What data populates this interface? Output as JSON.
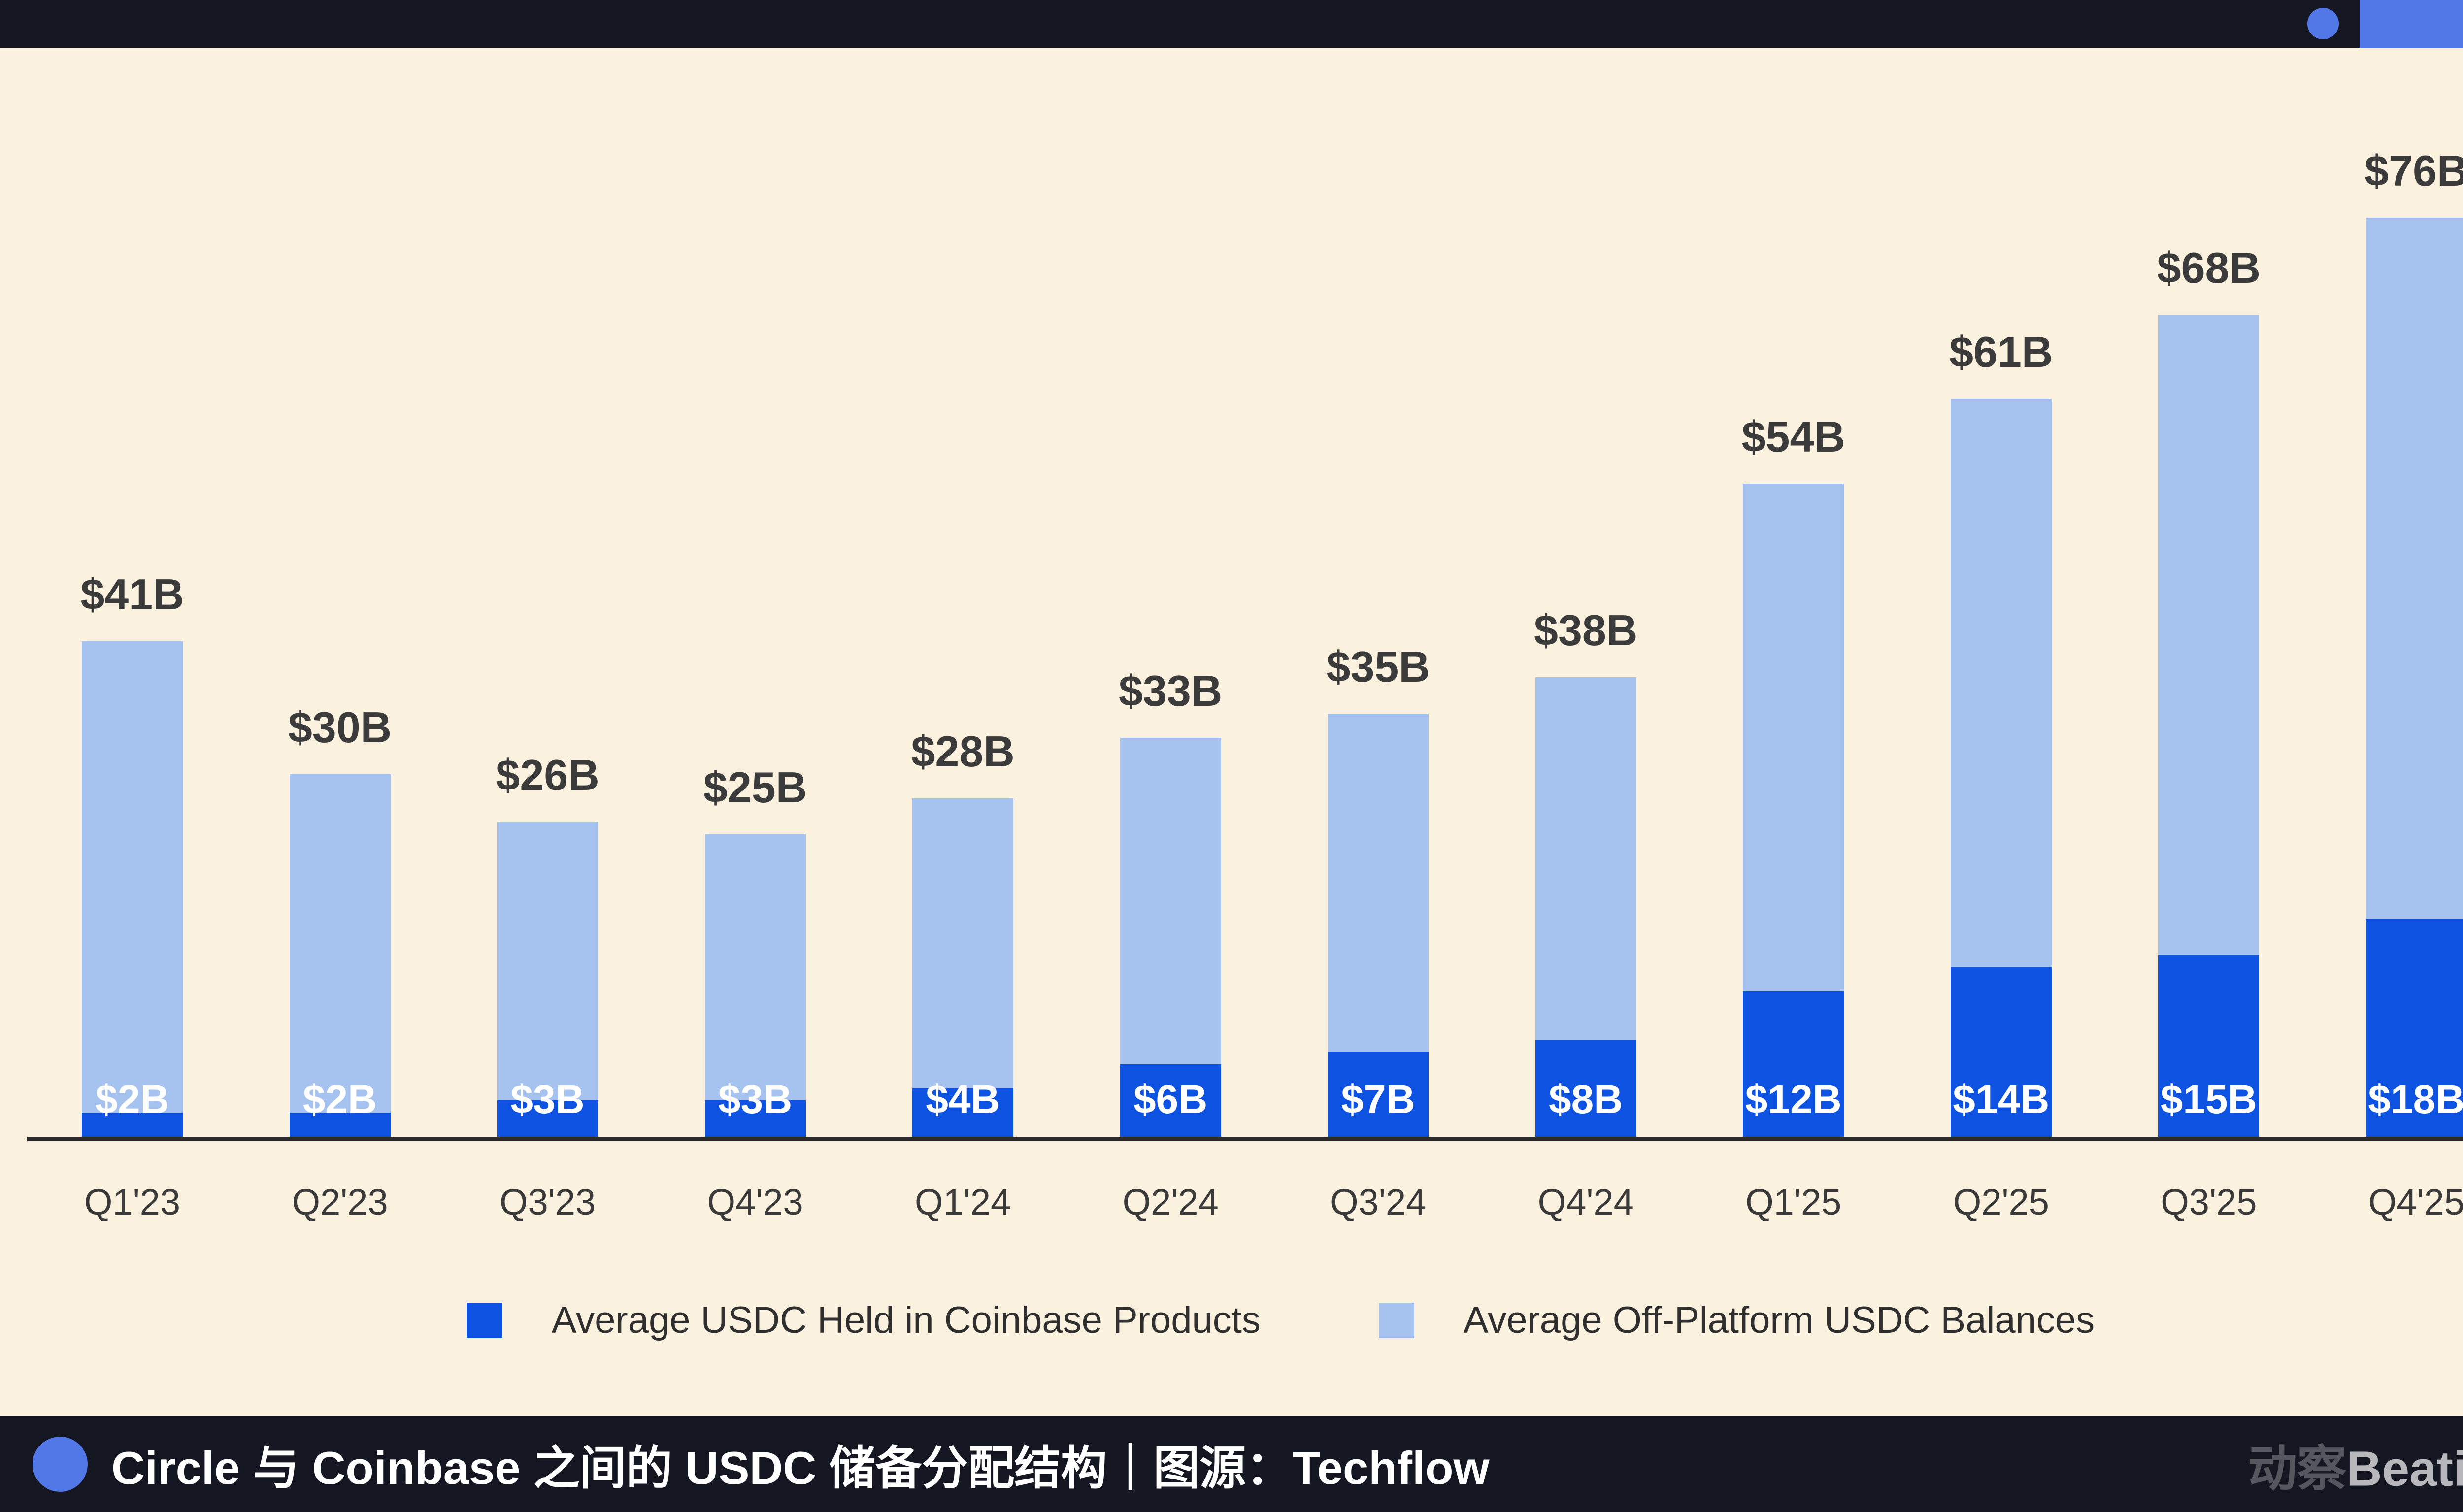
{
  "colors": {
    "background": "#fbf1df",
    "navy_bar": "#141722",
    "accent_blue": "#5277e6",
    "coinbase_blue": "#0d52e0",
    "offplatform_blue": "#a6c3f0",
    "axis": "#2d2d2d",
    "value_label": "#3b3b3b",
    "inner_label": "#ffffff"
  },
  "chart_data": {
    "type": "bar",
    "stacked": true,
    "title": "",
    "xlabel": "",
    "ylabel": "",
    "ylim": [
      0,
      80
    ],
    "grid": false,
    "legend_position": "bottom",
    "categories": [
      "Q1'23",
      "Q2'23",
      "Q3'23",
      "Q4'23",
      "Q1'24",
      "Q2'24",
      "Q3'24",
      "Q4'24",
      "Q1'25",
      "Q2'25",
      "Q3'25",
      "Q4'25"
    ],
    "series": [
      {
        "name": "Average USDC Held in Coinbase Products",
        "color": "#0d52e0",
        "values": [
          2,
          2,
          3,
          3,
          4,
          6,
          7,
          8,
          12,
          14,
          15,
          18
        ]
      },
      {
        "name": "Average Off-Platform USDC Balances",
        "color": "#a6c3f0",
        "values": [
          39,
          28,
          23,
          22,
          24,
          27,
          28,
          30,
          42,
          47,
          53,
          58
        ]
      }
    ],
    "totals": [
      41,
      30,
      26,
      25,
      28,
      33,
      35,
      38,
      54,
      61,
      68,
      76
    ],
    "total_labels": [
      "$41B",
      "$30B",
      "$26B",
      "$25B",
      "$28B",
      "$33B",
      "$35B",
      "$38B",
      "$54B",
      "$61B",
      "$68B",
      "$76B"
    ],
    "inner_labels": [
      "$2B",
      "$2B",
      "$3B",
      "$3B",
      "$4B",
      "$6B",
      "$7B",
      "$8B",
      "$12B",
      "$14B",
      "$15B",
      "$18B"
    ]
  },
  "legend": {
    "items": [
      {
        "label": "Average USDC Held in Coinbase Products",
        "color": "#0d52e0"
      },
      {
        "label": "Average Off-Platform USDC Balances",
        "color": "#a6c3f0"
      }
    ]
  },
  "footer": {
    "caption": "Circle 与 Coinbase 之间的 USDC 储备分配结构｜图源：Techflow",
    "watermark_cn": "动察",
    "watermark_en": "Beating"
  }
}
